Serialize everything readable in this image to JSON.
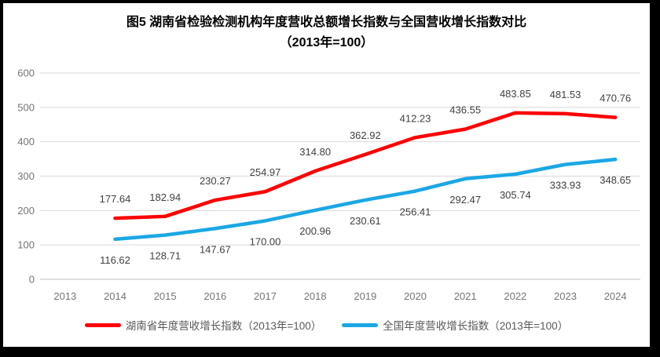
{
  "figure": {
    "border_color": "#000000",
    "background": "#ffffff"
  },
  "chart_data": {
    "type": "line",
    "title": "图5 湖南省检验检测机构年度营收总额增长指数与全国营收增长指数对比",
    "subtitle": "（2013年=100）",
    "categories": [
      "2013",
      "2014",
      "2015",
      "2016",
      "2017",
      "2018",
      "2019",
      "2020",
      "2021",
      "2022",
      "2023",
      "2024"
    ],
    "series": [
      {
        "key": "hunan-series",
        "name": "湖南省年度营收增长指数（2013年=100）",
        "color": "#fe0000",
        "label_position": "above",
        "values": [
          null,
          177.64,
          182.94,
          230.27,
          254.97,
          314.8,
          362.92,
          412.23,
          436.55,
          483.85,
          481.53,
          470.76
        ]
      },
      {
        "key": "national-series",
        "name": "全国年度营收增长指数（2013年=100）",
        "color": "#1ba7e4",
        "label_position": "below",
        "values": [
          null,
          116.62,
          128.71,
          147.67,
          170.0,
          200.96,
          230.61,
          256.41,
          292.47,
          305.74,
          333.93,
          348.65
        ]
      }
    ],
    "xlabel": "",
    "ylabel": "",
    "ylim": [
      0,
      600
    ],
    "yticks": [
      0,
      100,
      200,
      300,
      400,
      500,
      600
    ],
    "grid": true,
    "grid_color": "#d9d9d9",
    "axis_color": "#bfbfbf",
    "legend_position": "bottom",
    "data_labels_decimals": 2
  }
}
